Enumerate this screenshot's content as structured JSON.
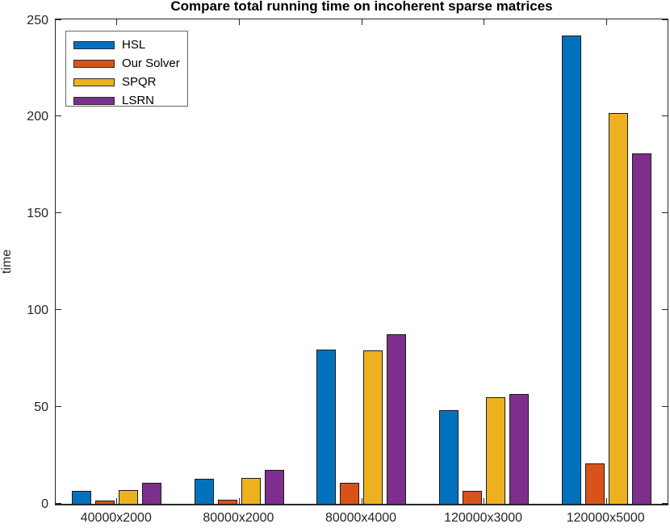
{
  "chart_data": {
    "type": "bar",
    "title": "Compare total running time on incoherent sparse matrices",
    "xlabel": "",
    "ylabel": "time",
    "categories": [
      "40000x2000",
      "80000x2000",
      "80000x4000",
      "120000x3000",
      "120000x5000"
    ],
    "series": [
      {
        "name": "HSL",
        "color": "#0072BD",
        "values": [
          6.5,
          13,
          79.5,
          48.5,
          241.5
        ]
      },
      {
        "name": "Our Solver",
        "color": "#D95319",
        "values": [
          1.5,
          2,
          11,
          6.5,
          21
        ]
      },
      {
        "name": "SPQR",
        "color": "#EDB120",
        "values": [
          7,
          13.5,
          79,
          55,
          201.5
        ]
      },
      {
        "name": "LSRN",
        "color": "#7E2F8E",
        "values": [
          11,
          17.5,
          87.5,
          56.5,
          181
        ]
      }
    ],
    "ylim": [
      0,
      250
    ],
    "yticks": [
      0,
      50,
      100,
      150,
      200,
      250
    ],
    "grid": false,
    "legend_position": "top-left",
    "axis_color": "#262626",
    "bar_edge_color": "#1a1a1a",
    "background_color": "#ffffff"
  }
}
